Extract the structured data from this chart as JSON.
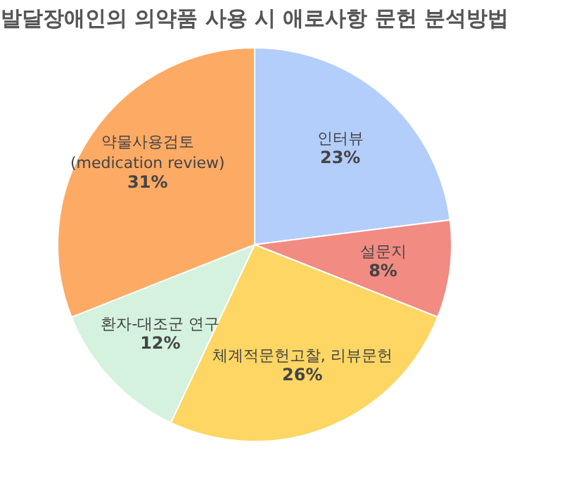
{
  "chart_data": {
    "type": "pie",
    "title": "발달장애인의 의약품 사용 시 애로사항 문헌 분석방법",
    "categories": [
      "인터뷰",
      "설문지",
      "체계적문헌고찰, 리뷰문헌",
      "환자-대조군 연구",
      "약물사용검토\n(medication review)"
    ],
    "values": [
      23,
      8,
      26,
      12,
      31
    ],
    "value_labels": [
      "23%",
      "8%",
      "26%",
      "12%",
      "31%"
    ],
    "colors": [
      "#b3cefb",
      "#f28b82",
      "#fdd663",
      "#d4f2dd",
      "#fdaa65"
    ],
    "legend": false
  }
}
